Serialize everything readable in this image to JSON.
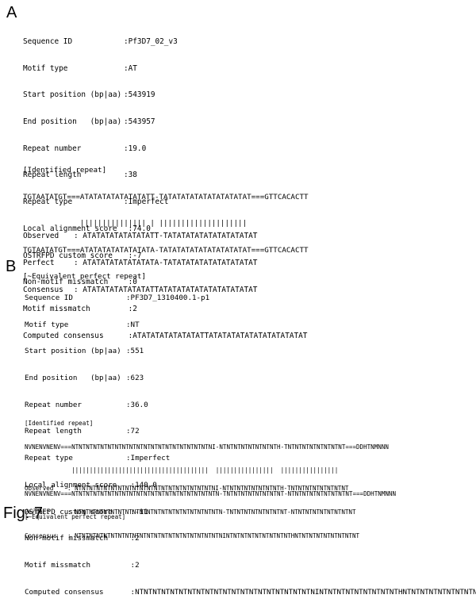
{
  "panels": [
    {
      "label": "A",
      "fields": [
        {
          "key": "Sequence ID",
          "value": ":Pf3D7_02_v3"
        },
        {
          "key": "Motif type",
          "value": ":AT"
        },
        {
          "key": "Start position (bp|aa)",
          "value": ":543919"
        },
        {
          "key": "End position   (bp|aa)",
          "value": ":543957"
        },
        {
          "key": "Repeat number",
          "value": ":19.0"
        },
        {
          "key": "Repeat length",
          "value": ":38"
        },
        {
          "key": "Repeat type",
          "value": ":Imperfect"
        },
        {
          "key": "Local alignment score",
          "value": " :74.0"
        },
        {
          "key": "OSTRFPD custom score",
          "value": " :-7"
        },
        {
          "key": "Non-motif missmatch",
          "value": " :0"
        },
        {
          "key": "Motif missmatch",
          "value": " :2"
        },
        {
          "key": "Computed consensus",
          "value": " :ATATATATATATATATTATATATATATATATATATATAT"
        }
      ],
      "identified_header": "[Identified repeat]",
      "alignment": [
        "TGTAATATGT===ATATATATATATATATT-TATATATATATATATATATAT===GTTCACACTT",
        "             ||||||||||||||| | ||||||||||||||||||||",
        "TGTAATATGT===ATATATATATATATATA-TATATATATATATATATATAT===GTTCACACTT"
      ],
      "equivalent_footer": "[~Equivalent perfect repeat]",
      "summary": [
        {
          "key": "Observed",
          "value": ": ATATATATATATATATT-TATATATATATATATATATAT"
        },
        {
          "key": "Perfect",
          "value": ": ATATATATATATATATA-TATATATATATATATATATAT"
        },
        {
          "key": "Consensus",
          "value": ": ATATATATATATATATTATATATATATATATATATATAT"
        }
      ]
    },
    {
      "label": "B",
      "fields": [
        {
          "key": "Sequence ID",
          "value": ":PF3D7_1310400.1-p1"
        },
        {
          "key": "Motif type",
          "value": ":NT"
        },
        {
          "key": "Start position (bp|aa)",
          "value": ":551"
        },
        {
          "key": "End position   (bp|aa)",
          "value": ":623"
        },
        {
          "key": "Repeat number",
          "value": ":36.0"
        },
        {
          "key": "Repeat length",
          "value": ":72"
        },
        {
          "key": "Repeat type",
          "value": ":Imperfect"
        },
        {
          "key": "Local alignment score",
          "value": " :140.0"
        },
        {
          "key": "OSTRFPD custom score",
          "value": " :-11"
        },
        {
          "key": "Non-motif missmatch",
          "value": " :2"
        },
        {
          "key": "Motif missmatch",
          "value": " :2"
        },
        {
          "key": "Computed consensus",
          "value": " :NTNTNTNTNTNTNTNTNTNTNTNTNTNTNTNTNTNTNTNTNINTNTNTNTNTNTNTNTNTHNTNTNTNTNTNTNTNTNT"
        }
      ],
      "identified_header": "[Identified repeat]",
      "alignment": [
        "NVNENVNENV===NTNTNTNTNTNTNTNTNTNTNTNTNTNTNTNTNTNTNTNI-NTNTNTNTNTNTNTNTH-TNTNTNTNTNTNTNTNT===DDHTNMNNN",
        "             ||||||||||||||||||||||||||||||||||||||  ||||||||||||||||  ||||||||||||||||",
        "NVNENVNENV===NTNTNTNTNTNTNTNTNTNTNTNTNTNTNTNTNTNTNTNTN-TNTNTNTNTNTNTNTNT-NTNTNTNTNTNTNTNTNT===DDHTNMNNN"
      ],
      "equivalent_footer": "[~Equivalent perfect repeat]",
      "summary": [
        {
          "key": "Observed",
          "value": ": NTNTNTNTNTNTNTNTNTNTNTNTNTNTNTNTNTNTNTNI-NTNTNTNTNTNTNTNTH-TNTNTNTNTNTNTNTNT"
        },
        {
          "key": "Perfect",
          "value": ": NTNTNTNTNTNTNTNTNTNTNTNTNTNTNTNTNTNTNTNTN-TNTNTNTNTNTNTNTNT-NTNTNTNTNTNTNTNTNT"
        },
        {
          "key": "Consensus",
          "value": ": NTNTNTNTNTNTNTNTNTNTNTNTNTNTNTNTNTNTNTNTNINTNTNTNTNTNTNTNTNTHNTNTNTNTNTNTNTNTNT"
        }
      ]
    }
  ],
  "caption": "Fig. 7"
}
